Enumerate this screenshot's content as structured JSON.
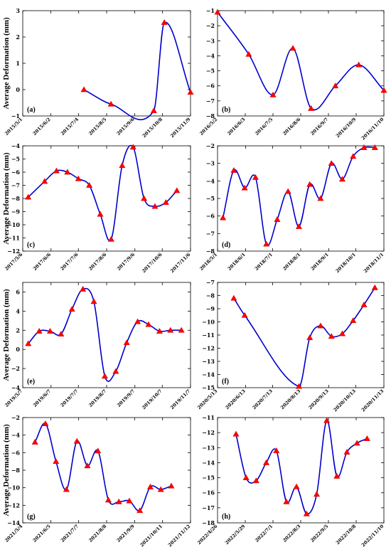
{
  "y_axis_label": "Average Deformation (mm)",
  "chart_data": [
    {
      "type": "line",
      "panel": "(a)",
      "ylabel": "Average Deformation (mm)",
      "xticks": [
        "2015/5/1",
        "2015/6/2",
        "2015/7/4",
        "2015/8/5",
        "2015/9/6",
        "2015/10/8",
        "2015/11/9"
      ],
      "xlim": [
        "2015/5/1",
        "2015/11/9"
      ],
      "ylim": [
        -1,
        3
      ],
      "yticks": [
        -1,
        0,
        1,
        2,
        3
      ],
      "marker_color": "#ff0000",
      "line_color": "#0000cc",
      "x": [
        "2015/7/10",
        "2015/8/10",
        "2015/9/28",
        "2015/10/10",
        "2015/11/9"
      ],
      "values": [
        0.0,
        -0.55,
        -0.8,
        2.55,
        -0.1
      ]
    },
    {
      "type": "line",
      "panel": "(b)",
      "ylabel": "",
      "xticks": [
        "2016/5/2",
        "2016/6/3",
        "2016/7/5",
        "2016/8/6",
        "2016/9/7",
        "2016/10/9",
        "2016/11/10"
      ],
      "xlim": [
        "2016/5/2",
        "2016/11/10"
      ],
      "ylim": [
        -8,
        -1
      ],
      "yticks": [
        -8,
        -7,
        -6,
        -5,
        -4,
        -3,
        -2,
        -1
      ],
      "marker_color": "#ff0000",
      "line_color": "#0000cc",
      "x": [
        "2016/5/2",
        "2016/6/7",
        "2016/7/5",
        "2016/7/28",
        "2016/8/18",
        "2016/9/15",
        "2016/10/12",
        "2016/11/10"
      ],
      "values": [
        -1.1,
        -3.9,
        -6.6,
        -3.5,
        -7.5,
        -6.0,
        -4.6,
        -6.3
      ]
    },
    {
      "type": "line",
      "panel": "(c)",
      "ylabel": "Average Deformation (mm)",
      "xticks": [
        "2017/5/6",
        "2017/6/6",
        "2017/7/6",
        "2017/8/6",
        "2017/9/6",
        "2017/10/6",
        "2017/11/6"
      ],
      "xlim": [
        "2017/5/6",
        "2017/11/6"
      ],
      "ylim": [
        -12,
        -4
      ],
      "yticks": [
        -12,
        -11,
        -10,
        -9,
        -8,
        -7,
        -6,
        -5,
        -4
      ],
      "marker_color": "#ff0000",
      "line_color": "#0000cc",
      "x": [
        "2017/5/12",
        "2017/5/30",
        "2017/6/12",
        "2017/6/24",
        "2017/7/6",
        "2017/7/18",
        "2017/7/30",
        "2017/8/11",
        "2017/8/23",
        "2017/9/4",
        "2017/9/16",
        "2017/9/28",
        "2017/10/10",
        "2017/10/22"
      ],
      "values": [
        -7.9,
        -6.7,
        -5.9,
        -6.0,
        -6.5,
        -7.0,
        -9.2,
        -11.1,
        -5.5,
        -4.1,
        -8.0,
        -8.6,
        -8.3,
        -7.4
      ]
    },
    {
      "type": "line",
      "panel": "(d)",
      "ylabel": "",
      "xticks": [
        "2018/5/1",
        "2018/6/1",
        "2018/7/1",
        "2018/8/1",
        "2018/9/1",
        "2018/10/1",
        "2018/11/1"
      ],
      "xlim": [
        "2018/5/1",
        "2018/11/1"
      ],
      "ylim": [
        -8,
        -2
      ],
      "yticks": [
        -8,
        -7,
        -6,
        -5,
        -4,
        -3,
        -2
      ],
      "marker_color": "#ff0000",
      "line_color": "#0000cc",
      "x": [
        "2018/5/7",
        "2018/5/19",
        "2018/5/31",
        "2018/6/12",
        "2018/6/24",
        "2018/7/6",
        "2018/7/18",
        "2018/7/30",
        "2018/8/11",
        "2018/8/23",
        "2018/9/4",
        "2018/9/16",
        "2018/9/28",
        "2018/10/10",
        "2018/10/22"
      ],
      "values": [
        -6.1,
        -3.4,
        -4.4,
        -3.8,
        -7.6,
        -6.2,
        -4.6,
        -6.6,
        -4.2,
        -5.0,
        -3.0,
        -3.9,
        -2.6,
        -2.1,
        -2.1
      ]
    },
    {
      "type": "line",
      "panel": "(e)",
      "ylabel": "Average Deformation (mm)",
      "xticks": [
        "2019/5/7",
        "2019/6/7",
        "2019/7/7",
        "2019/8/7",
        "2019/9/7",
        "2019/10/7",
        "2019/11/7"
      ],
      "xlim": [
        "2019/5/7",
        "2019/11/7"
      ],
      "ylim": [
        -4,
        7
      ],
      "yticks": [
        -4,
        -2,
        0,
        2,
        4,
        6
      ],
      "marker_color": "#ff0000",
      "line_color": "#0000cc",
      "x": [
        "2019/5/13",
        "2019/5/25",
        "2019/6/6",
        "2019/6/18",
        "2019/6/30",
        "2019/7/12",
        "2019/7/24",
        "2019/8/5",
        "2019/8/17",
        "2019/8/29",
        "2019/9/10",
        "2019/9/22",
        "2019/10/4",
        "2019/10/16",
        "2019/10/28"
      ],
      "values": [
        0.6,
        1.9,
        1.9,
        1.6,
        4.2,
        6.3,
        5.0,
        -2.8,
        -2.3,
        0.7,
        2.9,
        2.6,
        1.9,
        2.0,
        2.0
      ]
    },
    {
      "type": "line",
      "panel": "(f)",
      "ylabel": "",
      "xticks": [
        "2020/5/13",
        "2020/6/13",
        "2020/7/13",
        "2020/8/13",
        "2020/9/13",
        "2020/10/13",
        "2020/11/13"
      ],
      "xlim": [
        "2020/5/13",
        "2020/11/13"
      ],
      "ylim": [
        -15,
        -7
      ],
      "yticks": [
        -15,
        -14,
        -13,
        -12,
        -11,
        -10,
        -9,
        -8,
        -7
      ],
      "marker_color": "#ff0000",
      "line_color": "#0000cc",
      "x": [
        "2020/5/31",
        "2020/6/12",
        "2020/8/11",
        "2020/8/23",
        "2020/9/4",
        "2020/9/16",
        "2020/9/28",
        "2020/10/10",
        "2020/10/22",
        "2020/11/3"
      ],
      "values": [
        -8.2,
        -9.5,
        -14.9,
        -11.2,
        -10.3,
        -11.1,
        -10.9,
        -9.9,
        -8.7,
        -7.4
      ]
    },
    {
      "type": "line",
      "panel": "(g)",
      "ylabel": "Average Deformation (mm)",
      "xticks": [
        "2021/5/4",
        "2021/6/5",
        "2021/7/7",
        "2021/8/8",
        "2021/9/9",
        "2021/10/11",
        "2021/11/12"
      ],
      "xlim": [
        "2021/5/4",
        "2021/11/12"
      ],
      "ylim": [
        -14,
        -2
      ],
      "yticks": [
        -14,
        -12,
        -10,
        -8,
        -6,
        -4,
        -2
      ],
      "marker_color": "#ff0000",
      "line_color": "#0000cc",
      "x": [
        "2021/5/18",
        "2021/5/30",
        "2021/6/11",
        "2021/6/23",
        "2021/7/5",
        "2021/7/17",
        "2021/7/29",
        "2021/8/10",
        "2021/8/22",
        "2021/9/3",
        "2021/9/15",
        "2021/9/27",
        "2021/10/9",
        "2021/10/21"
      ],
      "values": [
        -4.8,
        -2.7,
        -7.0,
        -10.2,
        -4.7,
        -7.5,
        -5.8,
        -11.4,
        -11.6,
        -11.5,
        -12.6,
        -9.9,
        -10.2,
        -9.8
      ]
    },
    {
      "type": "line",
      "panel": "(h)",
      "ylabel": "",
      "xticks": [
        "2022/4/26",
        "2022/5/29",
        "2022/7/1",
        "2022/8/3",
        "2022/9/5",
        "2022/10/8",
        "2022/11/10"
      ],
      "xlim": [
        "2022/4/26",
        "2022/11/10"
      ],
      "ylim": [
        -18,
        -11
      ],
      "yticks": [
        -18,
        -17,
        -16,
        -15,
        -14,
        -13,
        -12,
        -11
      ],
      "marker_color": "#ff0000",
      "line_color": "#0000cc",
      "x": [
        "2022/5/18",
        "2022/5/30",
        "2022/6/11",
        "2022/6/23",
        "2022/7/5",
        "2022/7/17",
        "2022/7/29",
        "2022/8/10",
        "2022/8/22",
        "2022/9/3",
        "2022/9/15",
        "2022/9/27",
        "2022/10/9",
        "2022/10/21"
      ],
      "values": [
        -12.1,
        -15.0,
        -15.2,
        -14.0,
        -13.2,
        -16.6,
        -15.6,
        -17.4,
        -16.1,
        -11.2,
        -14.9,
        -13.3,
        -12.7,
        -12.4
      ]
    }
  ]
}
